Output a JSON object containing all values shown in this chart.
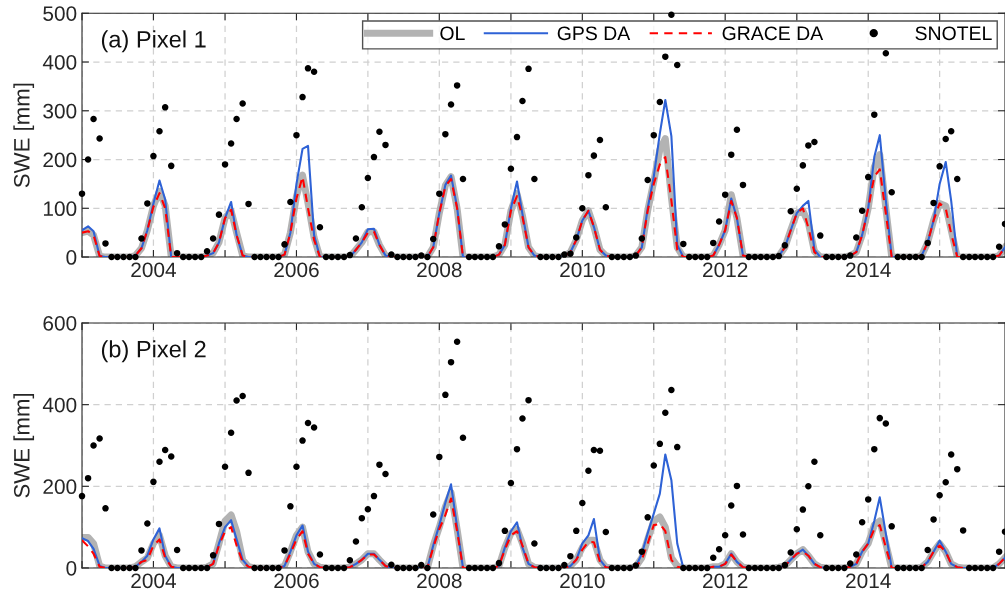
{
  "chart_data": [
    {
      "type": "line",
      "ylabel": "SWE [mm]",
      "annotations": [
        "(a) Pixel 1"
      ],
      "grid": true,
      "legend": "top right",
      "xlim": [
        "2003-01",
        "2015-12"
      ],
      "ylim": [
        0,
        500
      ],
      "yticks": [
        0,
        100,
        200,
        300,
        400,
        500
      ],
      "xticks": [
        {
          "value": "2003",
          "label": null
        },
        "2004",
        {
          "value": "2005",
          "label": null
        },
        "2006",
        {
          "value": "2007",
          "label": null
        },
        "2008",
        {
          "value": "2009",
          "label": null
        },
        "2010",
        {
          "value": "2011",
          "label": null
        },
        "2012",
        {
          "value": "2013",
          "label": null
        },
        "2014",
        {
          "value": "2015",
          "label": null
        }
      ],
      "x": [
        "2003-01",
        "2003-02",
        "2003-03",
        "2003-04",
        "2003-05",
        "2003-06",
        "2003-07",
        "2003-08",
        "2003-09",
        "2003-10",
        "2003-11",
        "2003-12",
        "2004-01",
        "2004-02",
        "2004-03",
        "2004-04",
        "2004-05",
        "2004-06",
        "2004-07",
        "2004-08",
        "2004-09",
        "2004-10",
        "2004-11",
        "2004-12",
        "2005-01",
        "2005-02",
        "2005-03",
        "2005-04",
        "2005-05",
        "2005-06",
        "2005-07",
        "2005-08",
        "2005-09",
        "2005-10",
        "2005-11",
        "2005-12",
        "2006-01",
        "2006-02",
        "2006-03",
        "2006-04",
        "2006-05",
        "2006-06",
        "2006-07",
        "2006-08",
        "2006-09",
        "2006-10",
        "2006-11",
        "2006-12",
        "2007-01",
        "2007-02",
        "2007-03",
        "2007-04",
        "2007-05",
        "2007-06",
        "2007-07",
        "2007-08",
        "2007-09",
        "2007-10",
        "2007-11",
        "2007-12",
        "2008-01",
        "2008-02",
        "2008-03",
        "2008-04",
        "2008-05",
        "2008-06",
        "2008-07",
        "2008-08",
        "2008-09",
        "2008-10",
        "2008-11",
        "2008-12",
        "2009-01",
        "2009-02",
        "2009-03",
        "2009-04",
        "2009-05",
        "2009-06",
        "2009-07",
        "2009-08",
        "2009-09",
        "2009-10",
        "2009-11",
        "2009-12",
        "2010-01",
        "2010-02",
        "2010-03",
        "2010-04",
        "2010-05",
        "2010-06",
        "2010-07",
        "2010-08",
        "2010-09",
        "2010-10",
        "2010-11",
        "2010-12",
        "2011-01",
        "2011-02",
        "2011-03",
        "2011-04",
        "2011-05",
        "2011-06",
        "2011-07",
        "2011-08",
        "2011-09",
        "2011-10",
        "2011-11",
        "2011-12",
        "2012-01",
        "2012-02",
        "2012-03",
        "2012-04",
        "2012-05",
        "2012-06",
        "2012-07",
        "2012-08",
        "2012-09",
        "2012-10",
        "2012-11",
        "2012-12",
        "2013-01",
        "2013-02",
        "2013-03",
        "2013-04",
        "2013-05",
        "2013-06",
        "2013-07",
        "2013-08",
        "2013-09",
        "2013-10",
        "2013-11",
        "2013-12",
        "2014-01",
        "2014-02",
        "2014-03",
        "2014-04",
        "2014-05",
        "2014-06",
        "2014-07",
        "2014-08",
        "2014-09",
        "2014-10",
        "2014-11",
        "2014-12",
        "2015-01",
        "2015-02",
        "2015-03",
        "2015-04",
        "2015-05",
        "2015-06",
        "2015-07",
        "2015-08",
        "2015-09",
        "2015-10",
        "2015-11",
        "2015-12"
      ],
      "series": [
        {
          "name": "OL",
          "color": "#b3b3b3",
          "values": [
            50,
            53,
            45,
            2,
            0,
            0,
            0,
            0,
            0,
            3,
            18,
            55,
            105,
            135,
            105,
            0,
            0,
            0,
            0,
            0,
            0,
            3,
            8,
            30,
            80,
            95,
            50,
            3,
            0,
            0,
            0,
            0,
            0,
            0,
            5,
            50,
            125,
            168,
            110,
            40,
            0,
            0,
            0,
            0,
            0,
            0,
            15,
            30,
            52,
            52,
            25,
            3,
            0,
            0,
            0,
            0,
            0,
            0,
            0,
            20,
            90,
            147,
            165,
            100,
            0,
            0,
            0,
            0,
            0,
            0,
            5,
            25,
            95,
            130,
            85,
            20,
            3,
            0,
            0,
            0,
            0,
            2,
            10,
            35,
            75,
            95,
            62,
            15,
            3,
            0,
            0,
            0,
            0,
            3,
            20,
            95,
            155,
            220,
            243,
            123,
            20,
            0,
            0,
            0,
            0,
            0,
            3,
            25,
            55,
            128,
            80,
            3,
            0,
            0,
            0,
            0,
            0,
            2,
            20,
            55,
            90,
            95,
            70,
            12,
            0,
            0,
            0,
            0,
            0,
            3,
            10,
            45,
            100,
            185,
            210,
            100,
            0,
            0,
            0,
            0,
            0,
            3,
            30,
            75,
            110,
            105,
            55,
            0,
            0,
            0,
            0,
            0,
            0,
            0,
            3,
            20
          ]
        },
        {
          "name": "GPS DA",
          "color": "#2e62d6",
          "values": [
            55,
            63,
            53,
            2,
            0,
            0,
            0,
            0,
            0,
            3,
            18,
            55,
            110,
            157,
            118,
            0,
            0,
            0,
            0,
            0,
            0,
            3,
            8,
            30,
            80,
            113,
            45,
            3,
            0,
            0,
            0,
            0,
            0,
            0,
            5,
            50,
            150,
            222,
            228,
            45,
            0,
            0,
            0,
            0,
            0,
            0,
            15,
            30,
            57,
            58,
            25,
            3,
            0,
            0,
            0,
            0,
            0,
            0,
            0,
            20,
            90,
            148,
            167,
            102,
            0,
            0,
            0,
            0,
            0,
            0,
            5,
            25,
            100,
            155,
            88,
            20,
            3,
            0,
            0,
            0,
            0,
            2,
            10,
            35,
            75,
            95,
            62,
            15,
            3,
            0,
            0,
            0,
            0,
            3,
            20,
            100,
            165,
            253,
            322,
            248,
            25,
            0,
            0,
            0,
            0,
            0,
            3,
            25,
            55,
            120,
            80,
            3,
            0,
            0,
            0,
            0,
            0,
            2,
            20,
            55,
            90,
            105,
            115,
            15,
            0,
            0,
            0,
            0,
            0,
            3,
            10,
            45,
            100,
            205,
            250,
            116,
            0,
            0,
            0,
            0,
            0,
            3,
            30,
            75,
            150,
            195,
            115,
            0,
            0,
            0,
            0,
            0,
            0,
            0,
            3,
            20
          ]
        },
        {
          "name": "GRACE DA",
          "line_style": "dashed",
          "color": "#ff0000",
          "values": [
            50,
            53,
            45,
            2,
            0,
            0,
            0,
            0,
            0,
            3,
            18,
            55,
            103,
            131,
            100,
            0,
            0,
            0,
            0,
            0,
            0,
            3,
            8,
            30,
            80,
            97,
            45,
            3,
            0,
            0,
            0,
            0,
            0,
            0,
            5,
            50,
            120,
            165,
            100,
            35,
            0,
            0,
            0,
            0,
            0,
            0,
            15,
            30,
            50,
            52,
            25,
            3,
            0,
            0,
            0,
            0,
            0,
            0,
            0,
            20,
            90,
            145,
            160,
            100,
            0,
            0,
            0,
            0,
            0,
            0,
            5,
            25,
            95,
            125,
            82,
            20,
            3,
            0,
            0,
            0,
            0,
            2,
            10,
            35,
            75,
            95,
            62,
            15,
            3,
            0,
            0,
            0,
            0,
            3,
            20,
            95,
            150,
            190,
            205,
            116,
            15,
            0,
            0,
            0,
            0,
            0,
            3,
            25,
            55,
            115,
            80,
            3,
            0,
            0,
            0,
            0,
            0,
            2,
            20,
            55,
            90,
            100,
            60,
            10,
            0,
            0,
            0,
            0,
            0,
            3,
            10,
            45,
            100,
            165,
            180,
            89,
            0,
            0,
            0,
            0,
            0,
            3,
            30,
            75,
            110,
            100,
            48,
            0,
            0,
            0,
            0,
            0,
            0,
            0,
            3,
            20
          ]
        },
        {
          "name": "SNOTEL",
          "type": "scatter",
          "marker": "circle",
          "color": "#000000",
          "values": [
            130,
            200,
            283,
            243,
            28,
            0,
            0,
            0,
            0,
            0,
            38,
            110,
            207,
            258,
            307,
            187,
            8,
            0,
            0,
            0,
            0,
            12,
            38,
            87,
            190,
            233,
            283,
            315,
            109,
            0,
            0,
            0,
            0,
            0,
            26,
            113,
            250,
            328,
            387,
            380,
            61,
            0,
            0,
            0,
            0,
            4,
            38,
            102,
            162,
            205,
            257,
            230,
            5,
            0,
            0,
            0,
            0,
            3,
            0,
            37,
            130,
            252,
            313,
            352,
            160,
            0,
            0,
            0,
            0,
            0,
            22,
            67,
            181,
            246,
            320,
            386,
            160,
            0,
            0,
            0,
            0,
            5,
            7,
            40,
            100,
            168,
            208,
            240,
            102,
            0,
            0,
            0,
            0,
            3,
            38,
            158,
            250,
            318,
            411,
            497,
            394,
            27,
            0,
            0,
            0,
            0,
            29,
            73,
            128,
            210,
            261,
            148,
            0,
            0,
            0,
            0,
            0,
            2,
            24,
            94,
            140,
            188,
            229,
            236,
            44,
            0,
            0,
            0,
            0,
            3,
            40,
            95,
            164,
            292,
            null,
            418,
            133,
            0,
            0,
            0,
            0,
            0,
            29,
            111,
            186,
            242,
            258,
            160,
            0,
            0,
            0,
            0,
            0,
            0,
            21,
            68
          ]
        }
      ]
    },
    {
      "type": "line",
      "ylabel": "SWE [mm]",
      "annotations": [
        "(b) Pixel 2"
      ],
      "grid": true,
      "xlim": [
        "2003-01",
        "2015-12"
      ],
      "ylim": [
        0,
        600
      ],
      "yticks": [
        0,
        200,
        400,
        600
      ],
      "xticks": [
        {
          "value": "2003",
          "label": null
        },
        "2004",
        {
          "value": "2005",
          "label": null
        },
        "2006",
        {
          "value": "2007",
          "label": null
        },
        "2008",
        {
          "value": "2009",
          "label": null
        },
        "2010",
        {
          "value": "2011",
          "label": null
        },
        "2012",
        {
          "value": "2013",
          "label": null
        },
        "2014",
        {
          "value": "2015",
          "label": null
        }
      ],
      "x": [
        "2003-01",
        "2003-02",
        "2003-03",
        "2003-04",
        "2003-05",
        "2003-06",
        "2003-07",
        "2003-08",
        "2003-09",
        "2003-10",
        "2003-11",
        "2003-12",
        "2004-01",
        "2004-02",
        "2004-03",
        "2004-04",
        "2004-05",
        "2004-06",
        "2004-07",
        "2004-08",
        "2004-09",
        "2004-10",
        "2004-11",
        "2004-12",
        "2005-01",
        "2005-02",
        "2005-03",
        "2005-04",
        "2005-05",
        "2005-06",
        "2005-07",
        "2005-08",
        "2005-09",
        "2005-10",
        "2005-11",
        "2005-12",
        "2006-01",
        "2006-02",
        "2006-03",
        "2006-04",
        "2006-05",
        "2006-06",
        "2006-07",
        "2006-08",
        "2006-09",
        "2006-10",
        "2006-11",
        "2006-12",
        "2007-01",
        "2007-02",
        "2007-03",
        "2007-04",
        "2007-05",
        "2007-06",
        "2007-07",
        "2007-08",
        "2007-09",
        "2007-10",
        "2007-11",
        "2007-12",
        "2008-01",
        "2008-02",
        "2008-03",
        "2008-04",
        "2008-05",
        "2008-06",
        "2008-07",
        "2008-08",
        "2008-09",
        "2008-10",
        "2008-11",
        "2008-12",
        "2009-01",
        "2009-02",
        "2009-03",
        "2009-04",
        "2009-05",
        "2009-06",
        "2009-07",
        "2009-08",
        "2009-09",
        "2009-10",
        "2009-11",
        "2009-12",
        "2010-01",
        "2010-02",
        "2010-03",
        "2010-04",
        "2010-05",
        "2010-06",
        "2010-07",
        "2010-08",
        "2010-09",
        "2010-10",
        "2010-11",
        "2010-12",
        "2011-01",
        "2011-02",
        "2011-03",
        "2011-04",
        "2011-05",
        "2011-06",
        "2011-07",
        "2011-08",
        "2011-09",
        "2011-10",
        "2011-11",
        "2011-12",
        "2012-01",
        "2012-02",
        "2012-03",
        "2012-04",
        "2012-05",
        "2012-06",
        "2012-07",
        "2012-08",
        "2012-09",
        "2012-10",
        "2012-11",
        "2012-12",
        "2013-01",
        "2013-02",
        "2013-03",
        "2013-04",
        "2013-05",
        "2013-06",
        "2013-07",
        "2013-08",
        "2013-09",
        "2013-10",
        "2013-11",
        "2013-12",
        "2014-01",
        "2014-02",
        "2014-03",
        "2014-04",
        "2014-05",
        "2014-06",
        "2014-07",
        "2014-08",
        "2014-09",
        "2014-10",
        "2014-11",
        "2014-12",
        "2015-01",
        "2015-02",
        "2015-03",
        "2015-04",
        "2015-05",
        "2015-06",
        "2015-07",
        "2015-08",
        "2015-09",
        "2015-10",
        "2015-11",
        "2015-12"
      ],
      "series": [
        {
          "color": "#b3b3b3",
          "values": [
            75,
            75,
            60,
            5,
            0,
            0,
            0,
            0,
            0,
            3,
            15,
            25,
            60,
            80,
            30,
            3,
            0,
            0,
            0,
            0,
            0,
            2,
            10,
            60,
            115,
            130,
            90,
            20,
            3,
            0,
            0,
            0,
            0,
            0,
            5,
            40,
            80,
            100,
            40,
            10,
            2,
            0,
            0,
            0,
            0,
            2,
            10,
            20,
            35,
            35,
            20,
            5,
            0,
            0,
            0,
            0,
            0,
            0,
            0,
            55,
            100,
            150,
            185,
            95,
            0,
            0,
            0,
            0,
            0,
            0,
            5,
            50,
            85,
            95,
            60,
            10,
            2,
            0,
            0,
            0,
            0,
            0,
            5,
            20,
            50,
            68,
            68,
            20,
            2,
            0,
            0,
            0,
            0,
            3,
            25,
            70,
            115,
            125,
            100,
            25,
            5,
            0,
            0,
            0,
            0,
            0,
            3,
            3,
            10,
            35,
            15,
            2,
            0,
            0,
            0,
            0,
            0,
            2,
            5,
            20,
            35,
            45,
            30,
            10,
            2,
            0,
            0,
            0,
            0,
            3,
            10,
            40,
            60,
            105,
            115,
            60,
            0,
            0,
            0,
            0,
            0,
            2,
            15,
            40,
            60,
            40,
            10,
            2,
            0,
            0,
            0,
            0,
            0,
            0,
            10,
            25
          ]
        },
        {
          "color": "#2e62d6",
          "values": [
            73,
            66,
            47,
            5,
            0,
            0,
            0,
            0,
            0,
            3,
            15,
            30,
            70,
            97,
            30,
            3,
            0,
            0,
            0,
            0,
            0,
            2,
            10,
            60,
            100,
            117,
            70,
            20,
            3,
            0,
            0,
            0,
            0,
            0,
            5,
            40,
            80,
            104,
            40,
            10,
            2,
            0,
            0,
            0,
            0,
            2,
            10,
            20,
            35,
            35,
            20,
            5,
            0,
            0,
            0,
            0,
            0,
            0,
            0,
            55,
            105,
            160,
            205,
            100,
            0,
            0,
            0,
            0,
            0,
            0,
            5,
            50,
            90,
            112,
            50,
            10,
            2,
            0,
            0,
            0,
            0,
            0,
            5,
            20,
            60,
            80,
            120,
            20,
            2,
            0,
            0,
            0,
            0,
            3,
            35,
            85,
            133,
            182,
            278,
            215,
            60,
            0,
            0,
            0,
            0,
            0,
            3,
            3,
            10,
            35,
            15,
            2,
            0,
            0,
            0,
            0,
            0,
            2,
            5,
            20,
            35,
            45,
            30,
            10,
            2,
            0,
            0,
            0,
            0,
            3,
            10,
            40,
            60,
            115,
            173,
            84,
            0,
            0,
            0,
            0,
            0,
            2,
            15,
            40,
            67,
            40,
            10,
            2,
            0,
            0,
            0,
            0,
            0,
            0,
            10,
            25
          ]
        },
        {
          "line_style": "dashed",
          "color": "#ff0000",
          "values": [
            68,
            53,
            35,
            3,
            0,
            0,
            0,
            0,
            0,
            3,
            15,
            20,
            55,
            70,
            25,
            3,
            0,
            0,
            0,
            0,
            0,
            2,
            10,
            55,
            90,
            100,
            55,
            15,
            3,
            0,
            0,
            0,
            0,
            0,
            5,
            35,
            70,
            90,
            35,
            10,
            2,
            0,
            0,
            0,
            0,
            2,
            10,
            20,
            33,
            33,
            20,
            5,
            0,
            0,
            0,
            0,
            0,
            0,
            0,
            50,
            95,
            130,
            170,
            90,
            0,
            0,
            0,
            0,
            0,
            0,
            5,
            45,
            80,
            90,
            55,
            10,
            2,
            0,
            0,
            0,
            0,
            0,
            5,
            20,
            45,
            64,
            63,
            15,
            2,
            0,
            0,
            0,
            0,
            3,
            20,
            60,
            105,
            108,
            90,
            20,
            3,
            0,
            0,
            0,
            0,
            0,
            3,
            3,
            10,
            33,
            15,
            2,
            0,
            0,
            0,
            0,
            0,
            2,
            5,
            20,
            35,
            40,
            30,
            10,
            2,
            0,
            0,
            0,
            0,
            3,
            10,
            40,
            60,
            95,
            105,
            50,
            0,
            0,
            0,
            0,
            0,
            2,
            15,
            40,
            55,
            40,
            10,
            2,
            0,
            0,
            0,
            0,
            0,
            0,
            10,
            25
          ]
        },
        {
          "type": "scatter",
          "marker": "circle",
          "color": "#000000",
          "values": [
            176,
            220,
            300,
            317,
            146,
            0,
            0,
            0,
            0,
            0,
            43,
            109,
            211,
            260,
            289,
            273,
            44,
            0,
            0,
            0,
            0,
            0,
            31,
            108,
            248,
            331,
            410,
            421,
            233,
            0,
            0,
            0,
            0,
            0,
            43,
            151,
            248,
            312,
            355,
            344,
            33,
            0,
            0,
            0,
            0,
            19,
            65,
            122,
            144,
            176,
            253,
            230,
            8,
            0,
            0,
            0,
            0,
            7,
            0,
            131,
            272,
            424,
            504,
            554,
            319,
            0,
            0,
            0,
            0,
            0,
            12,
            91,
            208,
            291,
            366,
            411,
            60,
            0,
            0,
            0,
            0,
            7,
            29,
            91,
            159,
            238,
            289,
            287,
            88,
            0,
            0,
            0,
            0,
            6,
            40,
            124,
            251,
            304,
            380,
            436,
            296,
            0,
            0,
            0,
            0,
            0,
            25,
            46,
            80,
            153,
            201,
            82,
            0,
            0,
            0,
            0,
            0,
            0,
            7,
            38,
            95,
            143,
            200,
            260,
            80,
            0,
            0,
            0,
            0,
            11,
            33,
            112,
            168,
            291,
            367,
            354,
            102,
            0,
            0,
            0,
            0,
            0,
            44,
            119,
            178,
            210,
            278,
            242,
            92,
            0,
            0,
            0,
            0,
            0,
            40,
            89
          ]
        }
      ]
    }
  ]
}
